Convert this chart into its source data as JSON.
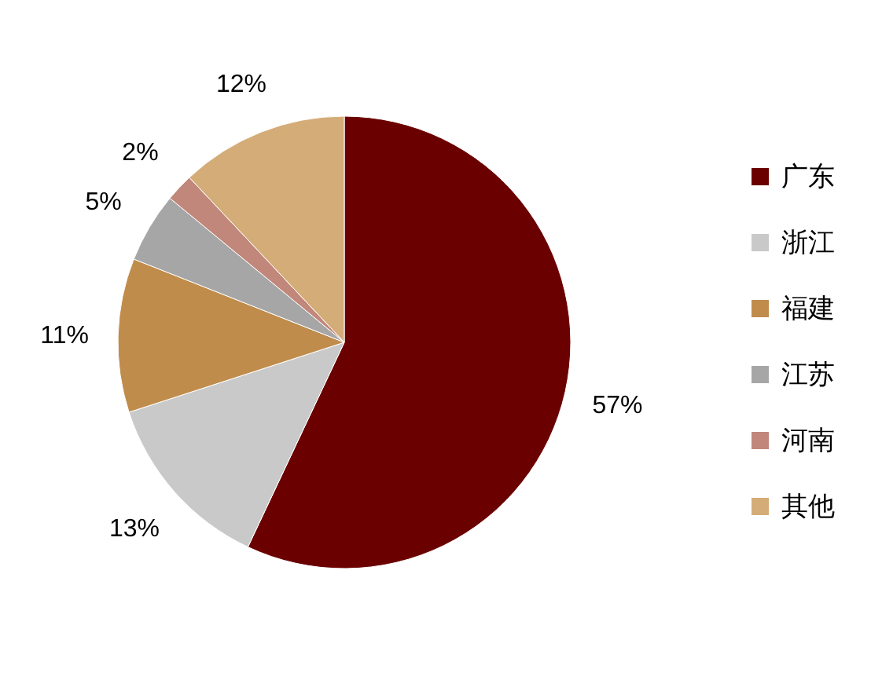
{
  "chart_data": {
    "type": "pie",
    "categories": [
      "广东",
      "浙江",
      "福建",
      "江苏",
      "河南",
      "其他"
    ],
    "values": [
      57,
      13,
      11,
      5,
      2,
      12
    ],
    "colors": [
      "#6b0000",
      "#c9c9c9",
      "#c08c4c",
      "#a6a6a6",
      "#c0877a",
      "#d4ac78"
    ],
    "value_labels": [
      "57%",
      "13%",
      "11%",
      "5%",
      "2%",
      "12%"
    ],
    "legend": "right"
  }
}
